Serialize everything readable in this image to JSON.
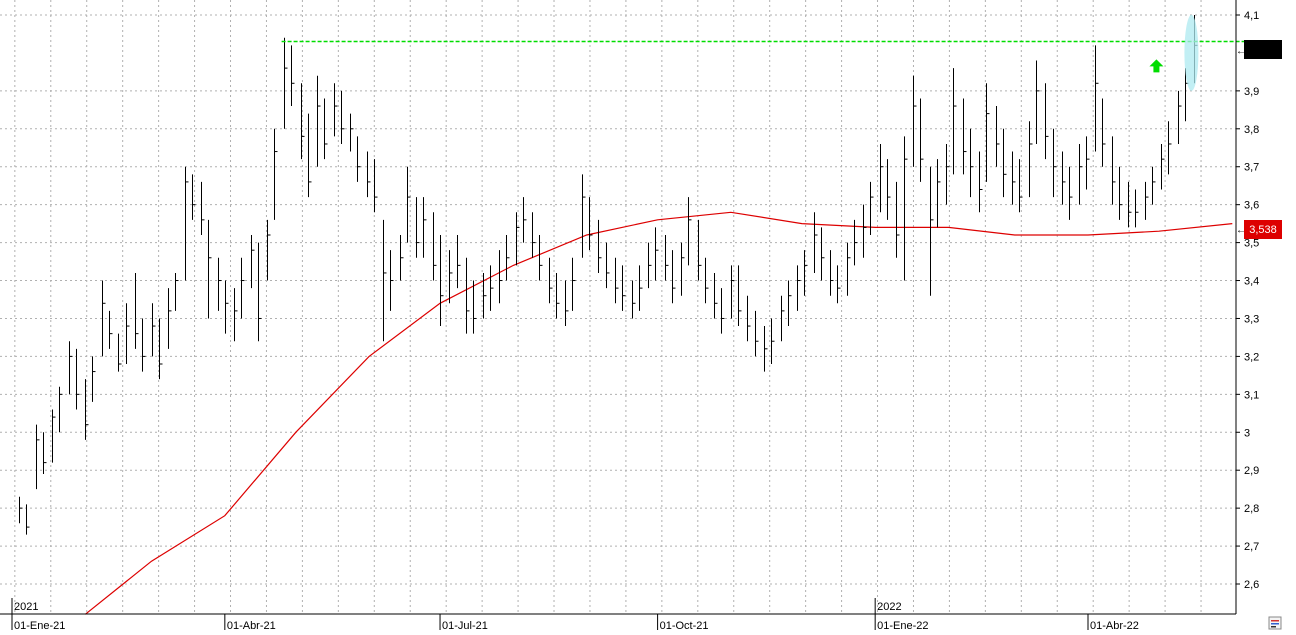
{
  "chart_data": {
    "type": "bar",
    "subtype": "ohlc",
    "title": "",
    "xlabel": "",
    "ylabel": "",
    "ylim": [
      2.52,
      4.11
    ],
    "grid": true,
    "y_ticks": [
      "4,1",
      "3,9",
      "3,8",
      "3,7",
      "3,6",
      "3,5",
      "3,4",
      "3,3",
      "3,2",
      "3,1",
      "3",
      "2,9",
      "2,8",
      "2,7",
      "2,6"
    ],
    "y_tick_values": [
      4.1,
      3.9,
      3.8,
      3.7,
      3.6,
      3.5,
      3.4,
      3.3,
      3.2,
      3.1,
      3.0,
      2.9,
      2.8,
      2.7,
      2.6
    ],
    "x_ticks": [
      "01-Ene-21",
      "01-Abr-21",
      "01-Jul-21",
      "01-Oct-21",
      "01-Ene-22",
      "01-Abr-22"
    ],
    "x_tick_dates": [
      "2021-01-01",
      "2021-04-01",
      "2021-07-01",
      "2021-10-01",
      "2022-01-01",
      "2022-04-01"
    ],
    "year_labels": [
      {
        "label": "2021",
        "date": "2021-01-01"
      },
      {
        "label": "2022",
        "date": "2022-01-01"
      }
    ],
    "last_price_label": "3,538",
    "last_price_label_value": 3.538,
    "current_price_value": 4.02,
    "resistance_line": {
      "value": 4.03,
      "start_date": "2021-04-25",
      "end_date": "2022-06-10",
      "color": "#00dd00"
    },
    "moving_average": {
      "color": "#dd0000",
      "points": [
        [
          "2021-02-01",
          2.52
        ],
        [
          "2021-03-01",
          2.66
        ],
        [
          "2021-04-01",
          2.78
        ],
        [
          "2021-05-01",
          3.0
        ],
        [
          "2021-06-01",
          3.2
        ],
        [
          "2021-07-01",
          3.34
        ],
        [
          "2021-08-01",
          3.44
        ],
        [
          "2021-09-01",
          3.52
        ],
        [
          "2021-10-01",
          3.56
        ],
        [
          "2021-11-01",
          3.58
        ],
        [
          "2021-12-01",
          3.55
        ],
        [
          "2022-01-01",
          3.54
        ],
        [
          "2022-02-01",
          3.54
        ],
        [
          "2022-03-01",
          3.52
        ],
        [
          "2022-04-01",
          3.52
        ],
        [
          "2022-05-01",
          3.53
        ],
        [
          "2022-06-01",
          3.55
        ]
      ]
    },
    "colors": {
      "bars": "#000000",
      "grid": "#b0b0b0",
      "resistance": "#00dd00",
      "moving_average": "#dd0000",
      "price_tag": "#dd0000",
      "current_tag": "#000000",
      "arrow": "#00dd00",
      "highlight": "#aeeaf0"
    },
    "series": [
      {
        "values": [
          [
            "2021-01-04",
            2.83,
            2.76,
            2.8
          ],
          [
            "2021-01-07",
            2.81,
            2.73,
            2.75
          ],
          [
            "2021-01-11",
            3.02,
            2.85,
            2.98
          ],
          [
            "2021-01-14",
            3.0,
            2.89,
            2.92
          ],
          [
            "2021-01-18",
            3.06,
            2.92,
            3.04
          ],
          [
            "2021-01-21",
            3.12,
            3.0,
            3.1
          ],
          [
            "2021-01-25",
            3.24,
            3.1,
            3.2
          ],
          [
            "2021-01-28",
            3.22,
            3.06,
            3.1
          ],
          [
            "2021-02-01",
            3.14,
            2.98,
            3.02
          ],
          [
            "2021-02-04",
            3.2,
            3.08,
            3.16
          ],
          [
            "2021-02-08",
            3.4,
            3.2,
            3.34
          ],
          [
            "2021-02-11",
            3.32,
            3.22,
            3.26
          ],
          [
            "2021-02-15",
            3.26,
            3.16,
            3.18
          ],
          [
            "2021-02-18",
            3.34,
            3.18,
            3.28
          ],
          [
            "2021-02-22",
            3.42,
            3.22,
            3.26
          ],
          [
            "2021-02-25",
            3.3,
            3.16,
            3.2
          ],
          [
            "2021-03-01",
            3.34,
            3.2,
            3.28
          ],
          [
            "2021-03-04",
            3.3,
            3.14,
            3.18
          ],
          [
            "2021-03-08",
            3.38,
            3.22,
            3.32
          ],
          [
            "2021-03-11",
            3.42,
            3.32,
            3.4
          ],
          [
            "2021-03-15",
            3.7,
            3.4,
            3.66
          ],
          [
            "2021-03-18",
            3.68,
            3.56,
            3.6
          ],
          [
            "2021-03-22",
            3.66,
            3.52,
            3.56
          ],
          [
            "2021-03-25",
            3.56,
            3.3,
            3.46
          ],
          [
            "2021-03-29",
            3.46,
            3.32,
            3.4
          ],
          [
            "2021-04-01",
            3.4,
            3.26,
            3.34
          ],
          [
            "2021-04-05",
            3.38,
            3.24,
            3.32
          ],
          [
            "2021-04-08",
            3.46,
            3.3,
            3.4
          ],
          [
            "2021-04-12",
            3.52,
            3.38,
            3.48
          ],
          [
            "2021-04-15",
            3.5,
            3.24,
            3.3
          ],
          [
            "2021-04-19",
            3.56,
            3.4,
            3.52
          ],
          [
            "2021-04-22",
            3.8,
            3.56,
            3.74
          ],
          [
            "2021-04-26",
            4.04,
            3.8,
            3.96
          ],
          [
            "2021-04-29",
            4.02,
            3.86,
            3.92
          ],
          [
            "2021-05-03",
            3.92,
            3.72,
            3.78
          ],
          [
            "2021-05-06",
            3.84,
            3.62,
            3.66
          ],
          [
            "2021-05-10",
            3.94,
            3.7,
            3.86
          ],
          [
            "2021-05-13",
            3.88,
            3.72,
            3.76
          ],
          [
            "2021-05-17",
            3.92,
            3.78,
            3.86
          ],
          [
            "2021-05-20",
            3.9,
            3.76,
            3.8
          ],
          [
            "2021-05-24",
            3.84,
            3.74,
            3.8
          ],
          [
            "2021-05-27",
            3.78,
            3.66,
            3.7
          ],
          [
            "2021-05-31",
            3.74,
            3.62,
            3.66
          ],
          [
            "2021-06-03",
            3.72,
            3.58,
            3.62
          ],
          [
            "2021-06-07",
            3.56,
            3.24,
            3.42
          ],
          [
            "2021-06-10",
            3.48,
            3.32,
            3.4
          ],
          [
            "2021-06-14",
            3.52,
            3.4,
            3.46
          ],
          [
            "2021-06-17",
            3.7,
            3.5,
            3.62
          ],
          [
            "2021-06-21",
            3.62,
            3.46,
            3.5
          ],
          [
            "2021-06-24",
            3.62,
            3.46,
            3.56
          ],
          [
            "2021-06-28",
            3.58,
            3.4,
            3.44
          ],
          [
            "2021-07-01",
            3.52,
            3.28,
            3.36
          ],
          [
            "2021-07-05",
            3.48,
            3.34,
            3.42
          ],
          [
            "2021-07-08",
            3.52,
            3.38,
            3.44
          ],
          [
            "2021-07-12",
            3.46,
            3.26,
            3.32
          ],
          [
            "2021-07-15",
            3.4,
            3.26,
            3.3
          ],
          [
            "2021-07-19",
            3.42,
            3.3,
            3.36
          ],
          [
            "2021-07-22",
            3.44,
            3.32,
            3.38
          ],
          [
            "2021-07-26",
            3.48,
            3.34,
            3.4
          ],
          [
            "2021-07-29",
            3.52,
            3.4,
            3.46
          ],
          [
            "2021-08-02",
            3.58,
            3.44,
            3.54
          ],
          [
            "2021-08-05",
            3.62,
            3.5,
            3.56
          ],
          [
            "2021-08-09",
            3.58,
            3.46,
            3.5
          ],
          [
            "2021-08-12",
            3.52,
            3.4,
            3.44
          ],
          [
            "2021-08-16",
            3.46,
            3.34,
            3.38
          ],
          [
            "2021-08-19",
            3.42,
            3.3,
            3.34
          ],
          [
            "2021-08-23",
            3.4,
            3.28,
            3.32
          ],
          [
            "2021-08-26",
            3.46,
            3.32,
            3.4
          ],
          [
            "2021-08-30",
            3.68,
            3.46,
            3.62
          ],
          [
            "2021-09-02",
            3.62,
            3.48,
            3.52
          ],
          [
            "2021-09-06",
            3.56,
            3.42,
            3.46
          ],
          [
            "2021-09-09",
            3.5,
            3.38,
            3.42
          ],
          [
            "2021-09-13",
            3.46,
            3.34,
            3.38
          ],
          [
            "2021-09-16",
            3.44,
            3.32,
            3.36
          ],
          [
            "2021-09-20",
            3.4,
            3.3,
            3.34
          ],
          [
            "2021-09-23",
            3.44,
            3.32,
            3.38
          ],
          [
            "2021-09-27",
            3.5,
            3.38,
            3.44
          ],
          [
            "2021-09-30",
            3.54,
            3.4,
            3.48
          ],
          [
            "2021-10-04",
            3.52,
            3.4,
            3.44
          ],
          [
            "2021-10-07",
            3.48,
            3.34,
            3.38
          ],
          [
            "2021-10-11",
            3.5,
            3.36,
            3.46
          ],
          [
            "2021-10-14",
            3.62,
            3.44,
            3.56
          ],
          [
            "2021-10-18",
            3.56,
            3.4,
            3.44
          ],
          [
            "2021-10-21",
            3.46,
            3.34,
            3.38
          ],
          [
            "2021-10-25",
            3.42,
            3.3,
            3.34
          ],
          [
            "2021-10-28",
            3.38,
            3.26,
            3.3
          ],
          [
            "2021-11-01",
            3.44,
            3.3,
            3.4
          ],
          [
            "2021-11-04",
            3.44,
            3.28,
            3.32
          ],
          [
            "2021-11-08",
            3.36,
            3.24,
            3.28
          ],
          [
            "2021-11-11",
            3.32,
            3.2,
            3.24
          ],
          [
            "2021-11-15",
            3.28,
            3.16,
            3.22
          ],
          [
            "2021-11-18",
            3.3,
            3.18,
            3.24
          ],
          [
            "2021-11-22",
            3.36,
            3.24,
            3.32
          ],
          [
            "2021-11-25",
            3.4,
            3.28,
            3.36
          ],
          [
            "2021-11-29",
            3.44,
            3.32,
            3.4
          ],
          [
            "2021-12-02",
            3.48,
            3.36,
            3.44
          ],
          [
            "2021-12-06",
            3.58,
            3.42,
            3.52
          ],
          [
            "2021-12-09",
            3.54,
            3.4,
            3.46
          ],
          [
            "2021-12-13",
            3.48,
            3.36,
            3.4
          ],
          [
            "2021-12-16",
            3.44,
            3.34,
            3.38
          ],
          [
            "2021-12-20",
            3.5,
            3.36,
            3.46
          ],
          [
            "2021-12-23",
            3.56,
            3.44,
            3.5
          ],
          [
            "2021-12-27",
            3.6,
            3.46,
            3.54
          ],
          [
            "2021-12-30",
            3.66,
            3.52,
            3.62
          ],
          [
            "2022-01-03",
            3.76,
            3.58,
            3.7
          ],
          [
            "2022-01-06",
            3.72,
            3.56,
            3.62
          ],
          [
            "2022-01-10",
            3.66,
            3.46,
            3.52
          ],
          [
            "2022-01-13",
            3.78,
            3.4,
            3.72
          ],
          [
            "2022-01-17",
            3.94,
            3.7,
            3.86
          ],
          [
            "2022-01-20",
            3.88,
            3.66,
            3.72
          ],
          [
            "2022-01-24",
            3.7,
            3.36,
            3.56
          ],
          [
            "2022-01-27",
            3.72,
            3.54,
            3.66
          ],
          [
            "2022-01-31",
            3.76,
            3.6,
            3.7
          ],
          [
            "2022-02-03",
            3.96,
            3.68,
            3.86
          ],
          [
            "2022-02-07",
            3.88,
            3.68,
            3.74
          ],
          [
            "2022-02-10",
            3.8,
            3.62,
            3.7
          ],
          [
            "2022-02-14",
            3.74,
            3.58,
            3.64
          ],
          [
            "2022-02-17",
            3.92,
            3.66,
            3.84
          ],
          [
            "2022-02-21",
            3.86,
            3.7,
            3.76
          ],
          [
            "2022-02-24",
            3.8,
            3.62,
            3.68
          ],
          [
            "2022-02-28",
            3.74,
            3.6,
            3.66
          ],
          [
            "2022-03-03",
            3.72,
            3.58,
            3.62
          ],
          [
            "2022-03-07",
            3.82,
            3.62,
            3.76
          ],
          [
            "2022-03-10",
            3.98,
            3.76,
            3.9
          ],
          [
            "2022-03-14",
            3.92,
            3.72,
            3.78
          ],
          [
            "2022-03-17",
            3.8,
            3.62,
            3.7
          ],
          [
            "2022-03-21",
            3.74,
            3.6,
            3.66
          ],
          [
            "2022-03-24",
            3.7,
            3.56,
            3.62
          ],
          [
            "2022-03-28",
            3.76,
            3.6,
            3.7
          ],
          [
            "2022-03-31",
            3.78,
            3.64,
            3.72
          ],
          [
            "2022-04-04",
            4.02,
            3.74,
            3.92
          ],
          [
            "2022-04-07",
            3.88,
            3.7,
            3.76
          ],
          [
            "2022-04-11",
            3.78,
            3.6,
            3.66
          ],
          [
            "2022-04-14",
            3.7,
            3.56,
            3.6
          ],
          [
            "2022-04-18",
            3.66,
            3.54,
            3.58
          ],
          [
            "2022-04-21",
            3.64,
            3.54,
            3.58
          ],
          [
            "2022-04-25",
            3.66,
            3.56,
            3.62
          ],
          [
            "2022-04-28",
            3.7,
            3.6,
            3.66
          ],
          [
            "2022-05-02",
            3.76,
            3.64,
            3.72
          ],
          [
            "2022-05-05",
            3.82,
            3.68,
            3.76
          ],
          [
            "2022-05-09",
            3.9,
            3.76,
            3.86
          ],
          [
            "2022-05-12",
            3.96,
            3.82,
            3.92
          ],
          [
            "2022-05-16",
            4.1,
            3.92,
            4.02
          ]
        ]
      }
    ]
  }
}
